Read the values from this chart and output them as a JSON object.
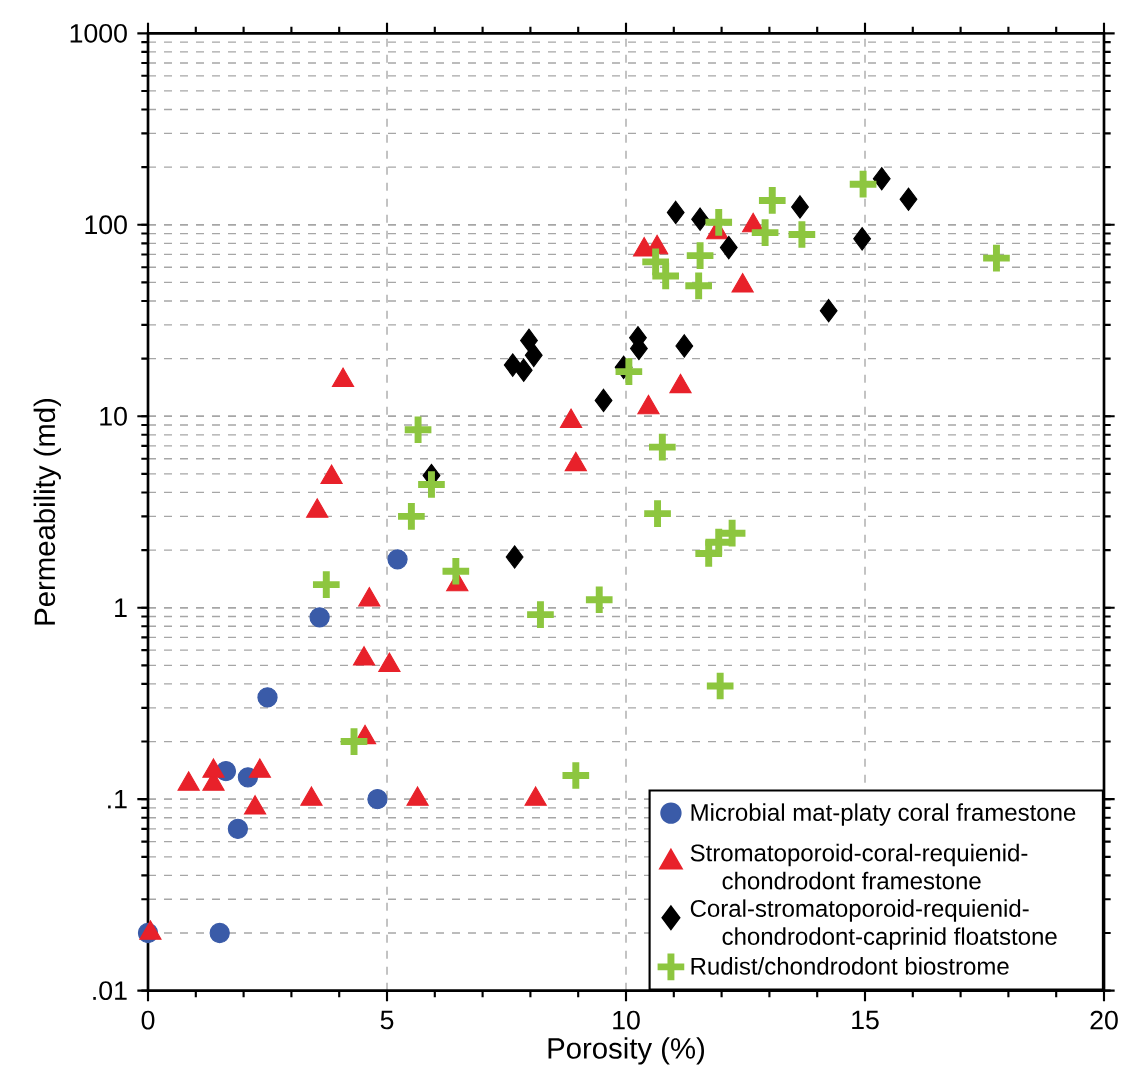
{
  "chart_data": {
    "type": "scatter",
    "xlabel": "Porosity (%)",
    "ylabel": "Permeability (md)",
    "xlim": [
      0,
      20
    ],
    "xticks": [
      0,
      5,
      10,
      15,
      20
    ],
    "ylim": [
      0.01,
      1000
    ],
    "yticks": [
      {
        "value": 0.01,
        "label": ".01"
      },
      {
        "value": 0.1,
        "label": ".1"
      },
      1,
      10,
      100,
      1000
    ],
    "log": "y",
    "grid": true,
    "legend": "bottom right",
    "series": [
      {
        "name": "Microbial mat-platy coral framestone",
        "color": "#3a5ba8",
        "marker": "circle",
        "x": [
          0.0,
          1.5,
          1.63,
          2.09,
          1.88,
          2.5,
          3.59,
          4.8,
          5.22
        ],
        "values": [
          0.02,
          0.02,
          0.14,
          0.13,
          0.07,
          0.34,
          0.89,
          0.1,
          1.79
        ]
      },
      {
        "name": "Stromatoporoid-coral-requienid-chondrodont framestone",
        "color": "#e8212a",
        "marker": "triangle",
        "x": [
          0.05,
          0.85,
          1.37,
          1.37,
          2.34,
          2.24,
          3.42,
          4.54,
          4.63,
          4.52,
          5.05,
          5.64,
          8.11,
          6.47,
          3.54,
          3.84,
          4.08,
          8.85,
          8.95,
          10.38,
          10.65,
          11.91,
          12.66,
          12.44,
          11.14,
          10.47
        ],
        "values": [
          0.02,
          0.12,
          0.12,
          0.14,
          0.14,
          0.09,
          0.1,
          0.21,
          1.1,
          0.54,
          0.5,
          0.1,
          0.1,
          1.32,
          3.2,
          4.8,
          15.4,
          9.4,
          5.6,
          74,
          76,
          91,
          99,
          48,
          14.3,
          11.1
        ]
      },
      {
        "name": "Coral-stromatoporoid-requienid-chondrodont-caprinid floatstone",
        "color": "#000000",
        "marker": "diamond",
        "x": [
          5.93,
          7.63,
          7.86,
          7.97,
          8.07,
          7.67,
          9.53,
          9.95,
          10.25,
          10.27,
          11.22,
          11.04,
          11.55,
          12.15,
          13.64,
          14.24,
          14.94,
          15.35,
          15.91
        ],
        "values": [
          4.9,
          18.5,
          17.4,
          24.9,
          20.8,
          1.84,
          12.1,
          18.0,
          25.7,
          22.6,
          23.3,
          116,
          107,
          76,
          124,
          35.6,
          84.5,
          174,
          136
        ]
      },
      {
        "name": "Rudist/chondrodont biostrome",
        "color": "#8dc63f",
        "marker": "cross",
        "x": [
          5.65,
          5.93,
          5.51,
          3.73,
          6.44,
          8.21,
          9.44,
          4.31,
          8.95,
          10.66,
          11.73,
          11.94,
          12.22,
          11.97,
          10.06,
          10.76,
          10.62,
          10.83,
          11.55,
          11.52,
          11.94,
          12.91,
          13.06,
          13.68,
          14.96,
          17.75
        ],
        "values": [
          8.5,
          4.4,
          3.0,
          1.32,
          1.55,
          0.92,
          1.1,
          0.2,
          0.133,
          3.1,
          1.92,
          2.2,
          2.45,
          0.39,
          17.1,
          6.9,
          64,
          54,
          69,
          48,
          103,
          91,
          134,
          89,
          163,
          67
        ]
      }
    ]
  }
}
